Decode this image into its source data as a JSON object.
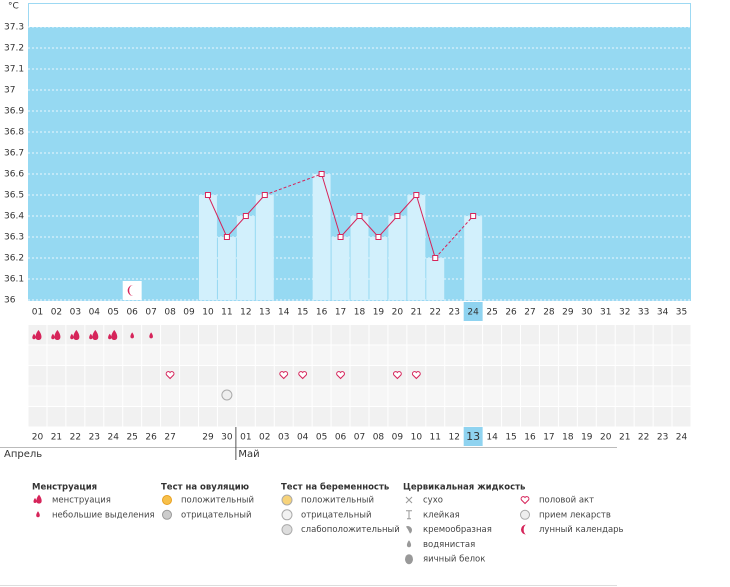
{
  "chart_data": {
    "type": "bbt",
    "y_unit": "°C",
    "categories": [
      "01",
      "02",
      "03",
      "04",
      "05",
      "06",
      "07",
      "08",
      "09",
      "10",
      "11",
      "12",
      "13",
      "14",
      "15",
      "16",
      "17",
      "18",
      "19",
      "20",
      "21",
      "22",
      "23",
      "24",
      "25",
      "26",
      "27",
      "28",
      "29",
      "30",
      "31",
      "32",
      "33",
      "34",
      "35"
    ],
    "values": [
      null,
      null,
      null,
      null,
      null,
      null,
      null,
      null,
      null,
      36.5,
      36.3,
      36.4,
      36.5,
      null,
      null,
      36.6,
      36.3,
      36.4,
      36.3,
      36.4,
      36.5,
      36.2,
      null,
      36.4,
      null,
      null,
      null,
      null,
      null,
      null,
      null,
      null,
      null,
      null,
      null
    ],
    "ylim": [
      36,
      37.3
    ],
    "yticks": [
      36,
      36.1,
      36.2,
      36.3,
      36.4,
      36.5,
      36.6,
      36.7,
      36.8,
      36.9,
      37,
      37.1,
      37.2,
      37.3
    ],
    "grid": true,
    "background_color": "#96d9f2",
    "bar_color": "#d2f0fc",
    "line_color": "#d6245a",
    "highlight_index": 23
  },
  "markers": {
    "menstruation": [
      0,
      1,
      2,
      3,
      4
    ],
    "spotting": [
      5,
      6
    ],
    "intercourse": [
      7,
      13,
      14,
      16,
      19,
      20
    ],
    "medication": [
      10
    ],
    "moon": [
      5
    ]
  },
  "dates": [
    "20",
    "21",
    "22",
    "23",
    "24",
    "25",
    "26",
    "27",
    null,
    "29",
    "30",
    "01",
    "02",
    "03",
    "04",
    "05",
    "06",
    "07",
    "08",
    "09",
    "10",
    "11",
    "12",
    "13",
    "14",
    "15",
    "16",
    "17",
    "18",
    "19",
    "20",
    "21",
    "22",
    "23",
    "24"
  ],
  "weekend_indices": [
    0,
    6,
    7,
    13,
    14,
    20,
    21,
    27,
    28,
    34
  ],
  "weekend_color": "#d6245a",
  "months": [
    "Апрель",
    "Май"
  ],
  "month_starts": [
    0,
    11
  ],
  "legend": [
    {
      "title": "Менструация",
      "items": [
        "менструация",
        "небольшие выделения"
      ]
    },
    {
      "title": "Тест на овуляцию",
      "items": [
        "положительный",
        "отрицательный"
      ]
    },
    {
      "title": "Тест на беременность",
      "items": [
        "положительный",
        "отрицательный",
        "слабоположительный"
      ]
    },
    {
      "title": "Цервикальная жидкость",
      "items": [
        "сухо",
        "клейкая",
        "кремообразная",
        "водянистая",
        "яичный белок"
      ]
    },
    {
      "items": [
        "половой акт",
        "прием лекарств",
        "лунный календарь"
      ]
    }
  ]
}
